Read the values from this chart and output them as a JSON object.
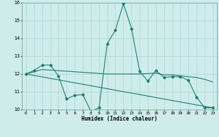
{
  "title": "",
  "xlabel": "Humidex (Indice chaleur)",
  "bg_color": "#ceecea",
  "grid_color": "#b0d8d5",
  "line_color": "#1a7a6e",
  "xlim": [
    -0.5,
    23.5
  ],
  "ylim": [
    10,
    16
  ],
  "xticks": [
    0,
    1,
    2,
    3,
    4,
    5,
    6,
    7,
    8,
    9,
    10,
    11,
    12,
    13,
    14,
    15,
    16,
    17,
    18,
    19,
    20,
    21,
    22,
    23
  ],
  "yticks": [
    10,
    11,
    12,
    13,
    14,
    15,
    16
  ],
  "line1_x": [
    0,
    1,
    2,
    3,
    4,
    5,
    6,
    7,
    8,
    9,
    10,
    11,
    12,
    13,
    14,
    15,
    16,
    17,
    18,
    19,
    20,
    21,
    22,
    23
  ],
  "line1_y": [
    12.0,
    12.2,
    12.5,
    12.5,
    11.9,
    10.6,
    10.8,
    10.85,
    9.9,
    10.1,
    13.7,
    14.45,
    15.95,
    14.55,
    12.15,
    11.6,
    12.2,
    11.8,
    11.85,
    11.85,
    11.65,
    10.7,
    10.1,
    10.1
  ],
  "line2_x": [
    0,
    2,
    10,
    12,
    14,
    16,
    17,
    18,
    19,
    20,
    21,
    22,
    23
  ],
  "line2_y": [
    12.0,
    12.25,
    12.0,
    12.0,
    12.0,
    12.05,
    11.95,
    11.95,
    11.9,
    11.85,
    11.8,
    11.7,
    11.55
  ],
  "line3_x": [
    0,
    23
  ],
  "line3_y": [
    12.0,
    10.1
  ]
}
